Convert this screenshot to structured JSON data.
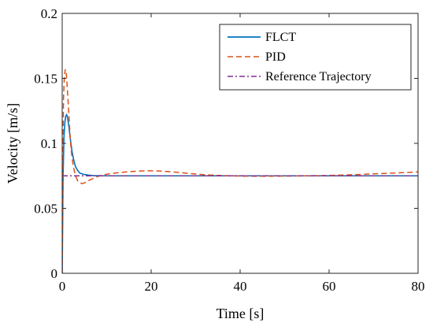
{
  "chart_data": {
    "type": "line",
    "title": "",
    "xlabel": "Time [s]",
    "ylabel": "Velocity [m/s]",
    "xlim": [
      0,
      80
    ],
    "ylim": [
      0,
      0.2
    ],
    "xticks": [
      0,
      20,
      40,
      60,
      80
    ],
    "yticks": [
      0,
      0.05,
      0.1,
      0.15,
      0.2
    ],
    "xtick_labels": [
      "0",
      "20",
      "40",
      "60",
      "80"
    ],
    "ytick_labels": [
      "0",
      "0.05",
      "0.1",
      "0.15",
      "0.2"
    ],
    "grid": false,
    "legend_position": "top-right",
    "series": [
      {
        "name": "FLCT",
        "color": "#0072BD",
        "style": "solid",
        "x": [
          0,
          0.2,
          0.4,
          0.6,
          0.8,
          1.0,
          1.2,
          1.5,
          1.8,
          2.2,
          2.6,
          3.0,
          3.5,
          4.0,
          4.5,
          5.0,
          6.0,
          7.0,
          8.0,
          10,
          15,
          20,
          30,
          40,
          50,
          60,
          70,
          80
        ],
        "y": [
          0,
          0.075,
          0.105,
          0.116,
          0.121,
          0.122,
          0.12,
          0.113,
          0.104,
          0.094,
          0.087,
          0.082,
          0.079,
          0.077,
          0.0765,
          0.076,
          0.0755,
          0.0752,
          0.0751,
          0.075,
          0.075,
          0.075,
          0.075,
          0.075,
          0.075,
          0.075,
          0.075,
          0.075
        ]
      },
      {
        "name": "PID",
        "color": "#D95319",
        "style": "dashed",
        "x": [
          0,
          0.15,
          0.3,
          0.5,
          0.7,
          0.9,
          1.1,
          1.4,
          1.7,
          2.0,
          2.5,
          3.0,
          3.5,
          4.0,
          4.5,
          5.0,
          5.5,
          6.0,
          7.0,
          8.0,
          9.0,
          10,
          12,
          15,
          18,
          20,
          22,
          25,
          28,
          32,
          36,
          40,
          45,
          50,
          55,
          60,
          65,
          70,
          75,
          80
        ],
        "y": [
          0,
          0.09,
          0.135,
          0.152,
          0.157,
          0.155,
          0.145,
          0.128,
          0.11,
          0.095,
          0.082,
          0.075,
          0.071,
          0.0695,
          0.069,
          0.0695,
          0.0705,
          0.0715,
          0.073,
          0.0745,
          0.0755,
          0.0762,
          0.0772,
          0.0782,
          0.0788,
          0.0789,
          0.0787,
          0.078,
          0.077,
          0.0758,
          0.0752,
          0.0748,
          0.0747,
          0.0748,
          0.075,
          0.0753,
          0.0758,
          0.0765,
          0.0772,
          0.078
        ]
      },
      {
        "name": "Reference Trajectory",
        "color": "#7E2F8E",
        "style": "dashdot",
        "x": [
          0,
          80
        ],
        "y": [
          0.075,
          0.075
        ]
      }
    ]
  }
}
